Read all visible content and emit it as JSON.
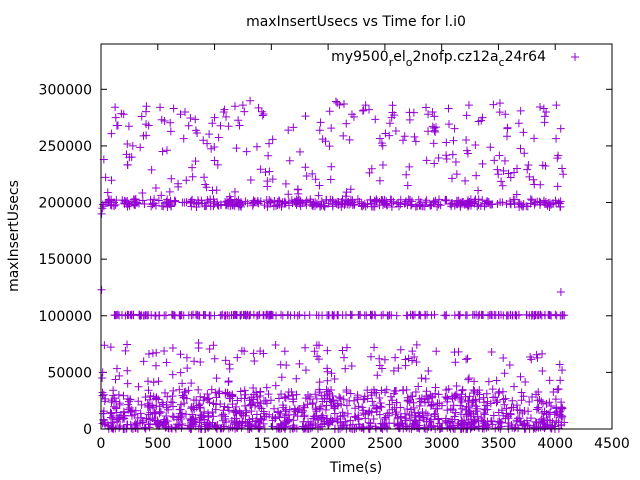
{
  "chart_data": {
    "type": "scatter",
    "title": "maxInsertUsecs vs Time for l.i0",
    "xlabel": "Time(s)",
    "ylabel": "maxInsertUsecs",
    "xlim": [
      0,
      4500
    ],
    "ylim": [
      0,
      340000
    ],
    "x_ticks": [
      0,
      500,
      1000,
      1500,
      2000,
      2500,
      3000,
      3500,
      4000,
      4500
    ],
    "y_ticks": [
      0,
      50000,
      100000,
      150000,
      200000,
      250000,
      300000
    ],
    "x_tick_labels": [
      "0",
      "500",
      "1000",
      "1500",
      "2000",
      "2500",
      "3000",
      "3500",
      "4000",
      "4500"
    ],
    "y_tick_labels": [
      "0",
      "50000",
      "100000",
      "150000",
      "200000",
      "250000",
      "300000"
    ],
    "grid": false,
    "legend_position": "top-right",
    "marker": "plus",
    "series": [
      {
        "name_parts": {
          "base": "my9500",
          "sub1": "r",
          "mid1": "el",
          "sub2": "o",
          "mid2": "2nofp.cz12a",
          "sub3": "c",
          "tail": "24r64"
        },
        "color": "#9400d3",
        "bands": [
          {
            "x_range": [
              0,
              4080
            ],
            "y_range": [
              0,
              35000
            ],
            "count": 1100
          },
          {
            "x_range": [
              0,
              4080
            ],
            "y_range": [
              35000,
              75000
            ],
            "count": 120
          },
          {
            "x_range": [
              100,
              4080
            ],
            "y_range": [
              100000,
              101000
            ],
            "count": 240
          },
          {
            "x_range": [
              0,
              4080
            ],
            "y_range": [
              196000,
              203000
            ],
            "count": 420
          },
          {
            "x_range": [
              0,
              4080
            ],
            "y_range": [
              205000,
              290000
            ],
            "count": 210
          }
        ],
        "points": [
          [
            5,
            123000
          ],
          [
            5,
            190000
          ],
          [
            12,
            195000
          ],
          [
            10,
            45000
          ],
          [
            15,
            50000
          ],
          [
            25,
            238000
          ],
          [
            130,
            275000
          ],
          [
            140,
            268000
          ],
          [
            200,
            278000
          ],
          [
            280,
            250000
          ],
          [
            250,
            240000
          ],
          [
            400,
            285000
          ],
          [
            420,
            268000
          ],
          [
            520,
            284000
          ],
          [
            560,
            272000
          ],
          [
            640,
            283000
          ],
          [
            700,
            278000
          ],
          [
            740,
            280000
          ],
          [
            900,
            255000
          ],
          [
            980,
            270000
          ],
          [
            1000,
            275000
          ],
          [
            1080,
            280000
          ],
          [
            1180,
            285000
          ],
          [
            1220,
            268000
          ],
          [
            1480,
            252000
          ],
          [
            2080,
            288000
          ],
          [
            2140,
            287000
          ],
          [
            2210,
            278000
          ],
          [
            2330,
            286000
          ],
          [
            2360,
            282000
          ],
          [
            2560,
            275000
          ],
          [
            2660,
            255000
          ],
          [
            2720,
            273000
          ],
          [
            2760,
            258000
          ],
          [
            2920,
            280000
          ],
          [
            3060,
            283000
          ],
          [
            3220,
            277000
          ],
          [
            3240,
            286000
          ],
          [
            3360,
            275000
          ],
          [
            3560,
            278000
          ],
          [
            3580,
            266000
          ],
          [
            3680,
            270000
          ],
          [
            3720,
            262000
          ],
          [
            3900,
            283000
          ],
          [
            3920,
            280000
          ],
          [
            4010,
            286000
          ],
          [
            4050,
            121000
          ],
          [
            4060,
            230000
          ],
          [
            4070,
            225000
          ],
          [
            700,
            66000
          ],
          [
            860,
            76000
          ],
          [
            990,
            74000
          ],
          [
            1200,
            63000
          ],
          [
            1350,
            60000
          ],
          [
            1920,
            74000
          ],
          [
            2140,
            63000
          ],
          [
            2450,
            62000
          ],
          [
            2590,
            63000
          ],
          [
            2640,
            70000
          ],
          [
            3440,
            68000
          ],
          [
            4040,
            57000
          ],
          [
            4060,
            52000
          ]
        ]
      }
    ]
  }
}
